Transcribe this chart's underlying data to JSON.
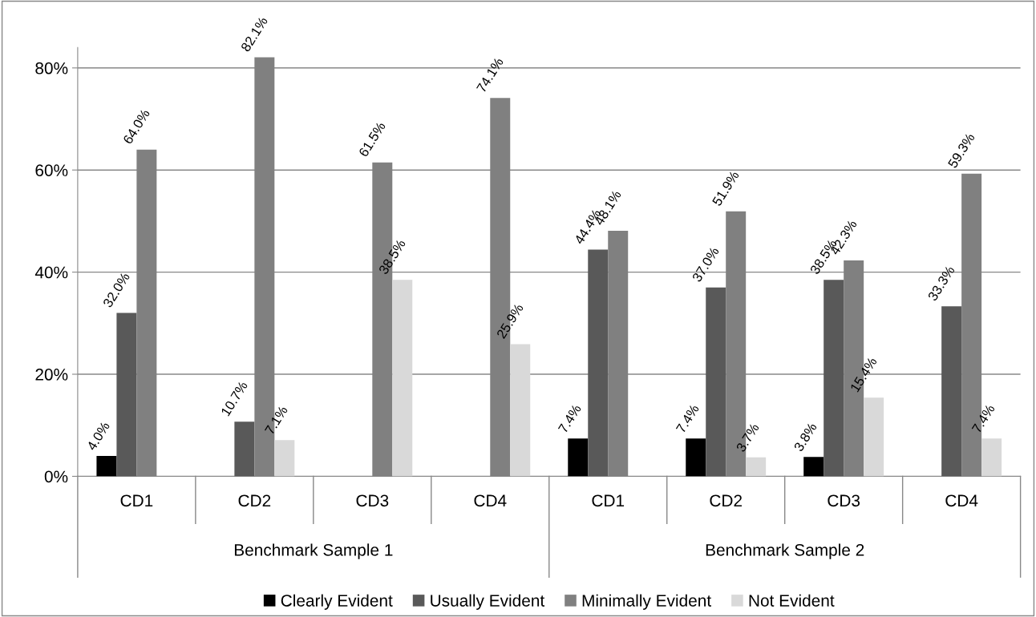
{
  "chart_data": {
    "type": "bar",
    "categories": [
      "CD1",
      "CD2",
      "CD3",
      "CD4",
      "CD1",
      "CD2",
      "CD3",
      "CD4"
    ],
    "annotations": [
      "Benchmark Sample 1",
      "Benchmark Sample 2"
    ],
    "series": [
      {
        "name": "Clearly Evident",
        "color": "#000000",
        "values": [
          4.0,
          null,
          null,
          null,
          7.4,
          7.4,
          3.8,
          null
        ],
        "value_labels": [
          "4.0%",
          null,
          null,
          null,
          "7.4%",
          "7.4%",
          "3.8%",
          null
        ]
      },
      {
        "name": "Usually Evident",
        "color": "#595959",
        "values": [
          32.0,
          10.7,
          null,
          null,
          44.4,
          37.0,
          38.5,
          33.3
        ],
        "value_labels": [
          "32.0%",
          "10.7%",
          null,
          null,
          "44.4%",
          "37.0%",
          "38.5%",
          "33.3%"
        ]
      },
      {
        "name": "Minimally Evident",
        "color": "#808080",
        "values": [
          64.0,
          82.1,
          61.5,
          74.1,
          48.1,
          51.9,
          42.3,
          59.3
        ],
        "value_labels": [
          "64.0%",
          "82.1%",
          "61.5%",
          "74.1%",
          "48.1%",
          "51.9%",
          "42.3%",
          "59.3%"
        ]
      },
      {
        "name": "Not Evident",
        "color": "#d9d9d9",
        "values": [
          null,
          7.1,
          38.5,
          25.9,
          null,
          3.7,
          15.4,
          7.4
        ],
        "value_labels": [
          null,
          "7.1%",
          "38.5%",
          "25.9%",
          null,
          "3.7%",
          "15.4%",
          "7.4%"
        ]
      }
    ],
    "ylim": [
      0,
      84
    ],
    "yticks": [
      {
        "value": 0,
        "label": "0%"
      },
      {
        "value": 20,
        "label": "20%"
      },
      {
        "value": 40,
        "label": "40%"
      },
      {
        "value": 60,
        "label": "60%"
      },
      {
        "value": 80,
        "label": "80%"
      }
    ],
    "grid": "y",
    "legend": "bottom"
  }
}
